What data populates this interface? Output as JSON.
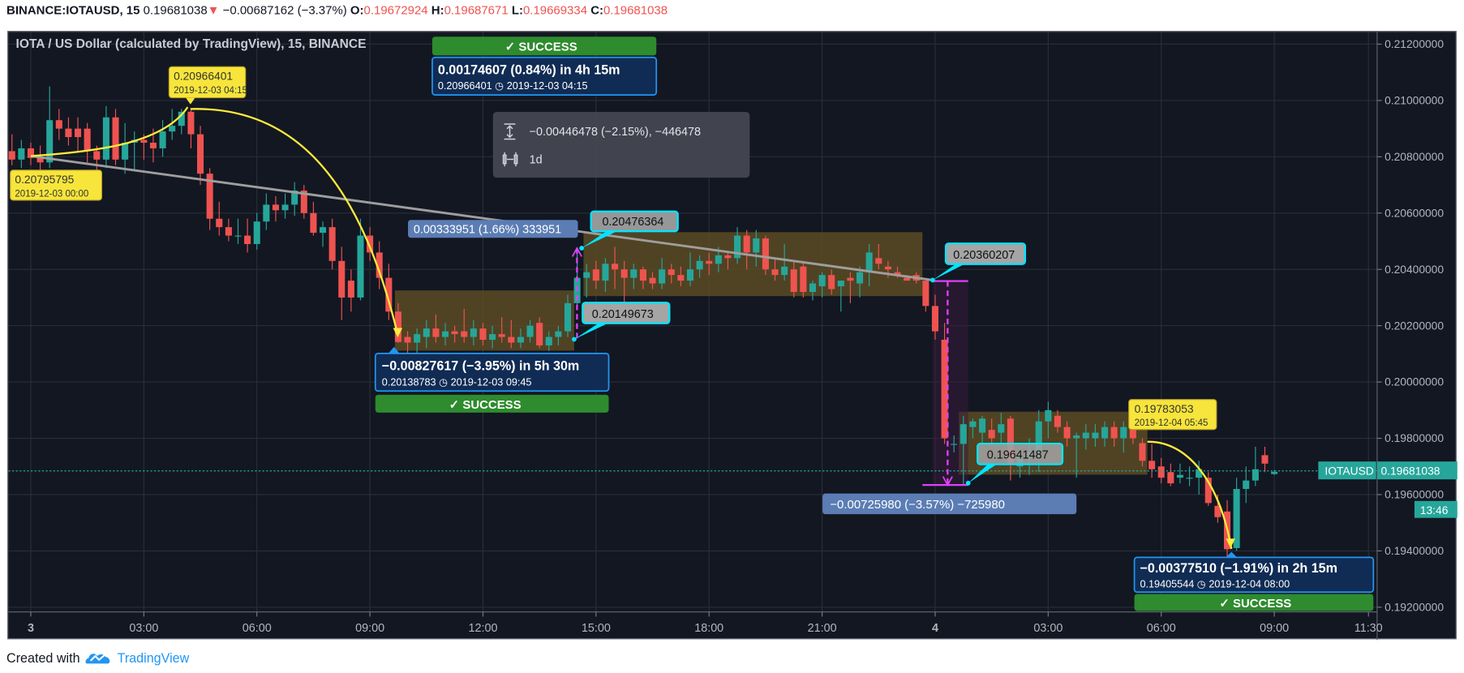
{
  "header": {
    "symbol": "BINANCE:IOTAUSD, 15",
    "last": "0.19681038",
    "change": "−0.00687162 (−3.37%)",
    "o_label": "O:",
    "o": "0.19672924",
    "h_label": "H:",
    "h": "0.19687671",
    "l_label": "L:",
    "l": "0.19669334",
    "c_label": "C:",
    "c": "0.19681038",
    "down_icon": "triangle-down-icon"
  },
  "chart_title": "IOTA / US Dollar (calculated by TradingView), 15, BINANCE",
  "footer": {
    "created_with": "Created with",
    "brand": "TradingView"
  },
  "colors": {
    "background": "#131722",
    "grid": "#2a2e39",
    "up": "#26a69a",
    "down": "#ef5350",
    "price_line": "#26a69a",
    "success": "#2e8b2e",
    "pattern_box": "#5c4b23"
  },
  "annotations": {
    "start_point": {
      "price": "0.20795795",
      "time": "2019-12-03 00:00"
    },
    "peak_point": {
      "price": "0.20966401",
      "time": "2019-12-03 04:15"
    },
    "low_point_1": {
      "price": "0.19783053",
      "time": "2019-12-04 05:45"
    },
    "top_projection": {
      "line1": "0.00174607 (0.84%) in 4h 15m",
      "line2": "0.20966401 ◷ 2019-12-03 04:15",
      "status": "✓ SUCCESS"
    },
    "mid_projection": {
      "line1": "−0.00827617 (−3.95%) in 5h 30m",
      "line2": "0.20138783 ◷ 2019-12-03 09:45",
      "status": "✓ SUCCESS"
    },
    "right_projection": {
      "line1": "−0.00377510 (−1.91%) in 2h 15m",
      "line2": "0.19405544 ◷ 2019-12-04 08:00",
      "status": "✓ SUCCESS"
    },
    "measure": {
      "price_range": "−0.00446478 (−2.15%), −446478",
      "time_range": "1d"
    },
    "range_up": "0.00333951 (1.66%) 333951",
    "range_down": "−0.00725980 (−3.57%) −725980",
    "callout_a": "0.20476364",
    "callout_b": "0.20149673",
    "callout_c": "0.20360207",
    "callout_d": "0.19641487"
  },
  "price_label": {
    "symbol": "IOTAUSD",
    "price": "0.19681038",
    "countdown": "13:46"
  },
  "chart_data": {
    "type": "candlestick",
    "title": "IOTA / US Dollar (calculated by TradingView), 15, BINANCE",
    "interval": "15",
    "first_bar": "2019-12-02 23:30",
    "ylim": [
      0.1912,
      0.2127
    ],
    "grid": true,
    "y_ticks": [
      "0.21200000",
      "0.21000000",
      "0.20800000",
      "0.20600000",
      "0.20400000",
      "0.20200000",
      "0.20000000",
      "0.19800000",
      "0.19600000",
      "0.19400000",
      "0.19200000"
    ],
    "x_ticks": [
      {
        "label": "3",
        "time": "2019-12-03 00:00"
      },
      {
        "label": "03:00",
        "time": "2019-12-03 03:00"
      },
      {
        "label": "06:00",
        "time": "2019-12-03 06:00"
      },
      {
        "label": "09:00",
        "time": "2019-12-03 09:00"
      },
      {
        "label": "12:00",
        "time": "2019-12-03 12:00"
      },
      {
        "label": "15:00",
        "time": "2019-12-03 15:00"
      },
      {
        "label": "18:00",
        "time": "2019-12-03 18:00"
      },
      {
        "label": "21:00",
        "time": "2019-12-03 21:00"
      },
      {
        "label": "4",
        "time": "2019-12-04 00:00"
      },
      {
        "label": "03:00",
        "time": "2019-12-04 03:00"
      },
      {
        "label": "06:00",
        "time": "2019-12-04 06:00"
      },
      {
        "label": "09:00",
        "time": "2019-12-04 09:00"
      },
      {
        "label": "11:30",
        "time": "2019-12-04 11:30"
      }
    ],
    "candles_ohlc": [
      [
        0.2082,
        0.2088,
        0.2077,
        0.2079
      ],
      [
        0.2079,
        0.2086,
        0.2076,
        0.2083
      ],
      [
        0.2083,
        0.2085,
        0.2077,
        0.20796
      ],
      [
        0.208,
        0.2084,
        0.2075,
        0.2078
      ],
      [
        0.2078,
        0.2105,
        0.2076,
        0.2093
      ],
      [
        0.2093,
        0.2097,
        0.2086,
        0.209
      ],
      [
        0.209,
        0.2094,
        0.2084,
        0.2087
      ],
      [
        0.209,
        0.2094,
        0.2082,
        0.2087
      ],
      [
        0.209,
        0.2092,
        0.2078,
        0.2082
      ],
      [
        0.2082,
        0.2084,
        0.2074,
        0.2079
      ],
      [
        0.2079,
        0.2098,
        0.2076,
        0.2094
      ],
      [
        0.2094,
        0.2097,
        0.2077,
        0.2079
      ],
      [
        0.2079,
        0.2092,
        0.2074,
        0.2085
      ],
      [
        0.2085,
        0.2089,
        0.2075,
        0.2086
      ],
      [
        0.2086,
        0.2088,
        0.2079,
        0.2085
      ],
      [
        0.2085,
        0.209,
        0.2078,
        0.2083
      ],
      [
        0.2083,
        0.2093,
        0.208,
        0.2089
      ],
      [
        0.2089,
        0.2097,
        0.2086,
        0.2091
      ],
      [
        0.2091,
        0.2097,
        0.2088,
        0.2096
      ],
      [
        0.2096,
        0.20966,
        0.2083,
        0.2088
      ],
      [
        0.2088,
        0.2091,
        0.207,
        0.2074
      ],
      [
        0.2074,
        0.2076,
        0.2054,
        0.2058
      ],
      [
        0.2058,
        0.2064,
        0.2052,
        0.2055
      ],
      [
        0.2055,
        0.2058,
        0.205,
        0.2052
      ],
      [
        0.2052,
        0.2058,
        0.2049,
        0.2052
      ],
      [
        0.2052,
        0.2058,
        0.2046,
        0.2049
      ],
      [
        0.2049,
        0.206,
        0.2047,
        0.2057
      ],
      [
        0.2057,
        0.2067,
        0.2054,
        0.2063
      ],
      [
        0.2063,
        0.2066,
        0.2057,
        0.2061
      ],
      [
        0.2061,
        0.2067,
        0.2058,
        0.2063
      ],
      [
        0.2063,
        0.2071,
        0.2059,
        0.2068
      ],
      [
        0.2068,
        0.207,
        0.2058,
        0.206
      ],
      [
        0.206,
        0.2064,
        0.2052,
        0.2053
      ],
      [
        0.2053,
        0.2057,
        0.2048,
        0.2055
      ],
      [
        0.2055,
        0.2058,
        0.204,
        0.2043
      ],
      [
        0.2043,
        0.2048,
        0.2022,
        0.203
      ],
      [
        0.2036,
        0.204,
        0.2025,
        0.203
      ],
      [
        0.203,
        0.2058,
        0.2029,
        0.2052
      ],
      [
        0.2052,
        0.2055,
        0.2043,
        0.2046
      ],
      [
        0.2046,
        0.205,
        0.2033,
        0.2037
      ],
      [
        0.2037,
        0.2042,
        0.2022,
        0.2025
      ],
      [
        0.2025,
        0.2028,
        0.20139,
        0.20142
      ],
      [
        0.2016,
        0.2018,
        0.201,
        0.2014
      ],
      [
        0.2014,
        0.2019,
        0.201,
        0.2017
      ],
      [
        0.2016,
        0.2022,
        0.2012,
        0.2019
      ],
      [
        0.2019,
        0.2024,
        0.2014,
        0.2016
      ],
      [
        0.2016,
        0.2021,
        0.2013,
        0.2018
      ],
      [
        0.2018,
        0.202,
        0.2014,
        0.2017
      ],
      [
        0.2018,
        0.2026,
        0.2014,
        0.2016
      ],
      [
        0.2016,
        0.2022,
        0.2013,
        0.2019
      ],
      [
        0.2019,
        0.2021,
        0.2013,
        0.2015
      ],
      [
        0.2015,
        0.202,
        0.2012,
        0.2017
      ],
      [
        0.2017,
        0.2023,
        0.2014,
        0.2016
      ],
      [
        0.2016,
        0.2022,
        0.2012,
        0.2014
      ],
      [
        0.2014,
        0.2019,
        0.2012,
        0.2016
      ],
      [
        0.2016,
        0.2022,
        0.2014,
        0.202
      ],
      [
        0.2021,
        0.2023,
        0.2012,
        0.2013
      ],
      [
        0.2013,
        0.2018,
        0.2011,
        0.2016
      ],
      [
        0.2016,
        0.202,
        0.2013,
        0.2018
      ],
      [
        0.2018,
        0.2031,
        0.2016,
        0.2028
      ],
      [
        0.2028,
        0.2047,
        0.2026,
        0.2037
      ],
      [
        0.2037,
        0.2042,
        0.203,
        0.2039
      ],
      [
        0.204,
        0.2043,
        0.2033,
        0.2036
      ],
      [
        0.2036,
        0.2044,
        0.2032,
        0.2042
      ],
      [
        0.2042,
        0.2048,
        0.2033,
        0.204
      ],
      [
        0.204,
        0.2043,
        0.2022,
        0.2037
      ],
      [
        0.2037,
        0.2042,
        0.2033,
        0.204
      ],
      [
        0.204,
        0.2041,
        0.2033,
        0.2036
      ],
      [
        0.2037,
        0.2039,
        0.2033,
        0.2035
      ],
      [
        0.2035,
        0.2044,
        0.2033,
        0.204
      ],
      [
        0.204,
        0.2042,
        0.2035,
        0.2038
      ],
      [
        0.2038,
        0.2041,
        0.2034,
        0.2036
      ],
      [
        0.2036,
        0.2046,
        0.2034,
        0.204
      ],
      [
        0.204,
        0.2045,
        0.2037,
        0.2043
      ],
      [
        0.2043,
        0.2046,
        0.2038,
        0.2042
      ],
      [
        0.2042,
        0.2048,
        0.2039,
        0.2045
      ],
      [
        0.2045,
        0.2046,
        0.204,
        0.2044
      ],
      [
        0.2044,
        0.2055,
        0.2042,
        0.2052
      ],
      [
        0.2052,
        0.2054,
        0.204,
        0.2046
      ],
      [
        0.2046,
        0.2054,
        0.2041,
        0.2051
      ],
      [
        0.2051,
        0.2052,
        0.2038,
        0.204
      ],
      [
        0.204,
        0.2044,
        0.2036,
        0.2038
      ],
      [
        0.2038,
        0.2049,
        0.2036,
        0.2041
      ],
      [
        0.204,
        0.2043,
        0.203,
        0.2032
      ],
      [
        0.2041,
        0.2043,
        0.203,
        0.2032
      ],
      [
        0.2032,
        0.2036,
        0.2029,
        0.2035
      ],
      [
        0.2034,
        0.2039,
        0.203,
        0.2038
      ],
      [
        0.2038,
        0.204,
        0.2031,
        0.2033
      ],
      [
        0.2034,
        0.2036,
        0.2025,
        0.2036
      ],
      [
        0.2037,
        0.2039,
        0.2028,
        0.2036
      ],
      [
        0.2035,
        0.2041,
        0.203,
        0.2039
      ],
      [
        0.2039,
        0.2049,
        0.2034,
        0.2046
      ],
      [
        0.2044,
        0.2049,
        0.204,
        0.2042
      ],
      [
        0.2041,
        0.2043,
        0.2037,
        0.204
      ],
      [
        0.2039,
        0.2041,
        0.2037,
        0.2038
      ],
      [
        0.2037,
        0.2038,
        0.2036,
        0.2036
      ],
      [
        0.2038,
        0.2039,
        0.2035,
        0.2036
      ],
      [
        0.2036,
        0.2036,
        0.2025,
        0.2027
      ],
      [
        0.2027,
        0.2031,
        0.2015,
        0.2018
      ],
      [
        0.2015,
        0.2021,
        0.1978,
        0.198
      ],
      [
        0.1978,
        0.1981,
        0.1975,
        0.1978
      ],
      [
        0.1978,
        0.1988,
        0.19634,
        0.1985
      ],
      [
        0.1984,
        0.1987,
        0.198,
        0.1986
      ],
      [
        0.1982,
        0.1988,
        0.1978,
        0.1987
      ],
      [
        0.1983,
        0.1987,
        0.1978,
        0.198
      ],
      [
        0.1982,
        0.1989,
        0.1978,
        0.1985
      ],
      [
        0.1987,
        0.1988,
        0.1965,
        0.1971
      ],
      [
        0.197,
        0.1977,
        0.1966,
        0.1973
      ],
      [
        0.1974,
        0.198,
        0.1967,
        0.1975
      ],
      [
        0.1975,
        0.199,
        0.1968,
        0.1986
      ],
      [
        0.1986,
        0.1993,
        0.198,
        0.199
      ],
      [
        0.1988,
        0.199,
        0.1982,
        0.1984
      ],
      [
        0.1984,
        0.1986,
        0.1977,
        0.198
      ],
      [
        0.198,
        0.1982,
        0.1966,
        0.1981
      ],
      [
        0.198,
        0.1985,
        0.1976,
        0.1982
      ],
      [
        0.198,
        0.1985,
        0.1977,
        0.1982
      ],
      [
        0.198,
        0.1986,
        0.1977,
        0.1984
      ],
      [
        0.1984,
        0.1986,
        0.1977,
        0.198
      ],
      [
        0.198,
        0.1986,
        0.1975,
        0.1984
      ],
      [
        0.1984,
        0.1986,
        0.1978,
        0.198
      ],
      [
        0.19783,
        0.198,
        0.197,
        0.1972
      ],
      [
        0.1972,
        0.1978,
        0.1966,
        0.1969
      ],
      [
        0.197,
        0.1973,
        0.1964,
        0.1966
      ],
      [
        0.1968,
        0.1971,
        0.1963,
        0.1964
      ],
      [
        0.1966,
        0.1971,
        0.1964,
        0.1967
      ],
      [
        0.1966,
        0.197,
        0.1963,
        0.1966
      ],
      [
        0.1966,
        0.1972,
        0.196,
        0.1969
      ],
      [
        0.1966,
        0.1968,
        0.1956,
        0.1957
      ],
      [
        0.1956,
        0.196,
        0.195,
        0.1952
      ],
      [
        0.1954,
        0.1958,
        0.1938,
        0.19406
      ],
      [
        0.1941,
        0.1966,
        0.194,
        0.1962
      ],
      [
        0.1962,
        0.197,
        0.1957,
        0.1965
      ],
      [
        0.1965,
        0.1977,
        0.1963,
        0.1969
      ],
      [
        0.1974,
        0.1977,
        0.1968,
        0.1971
      ],
      [
        0.19673,
        0.19687671,
        0.19669334,
        0.19681038
      ]
    ]
  }
}
